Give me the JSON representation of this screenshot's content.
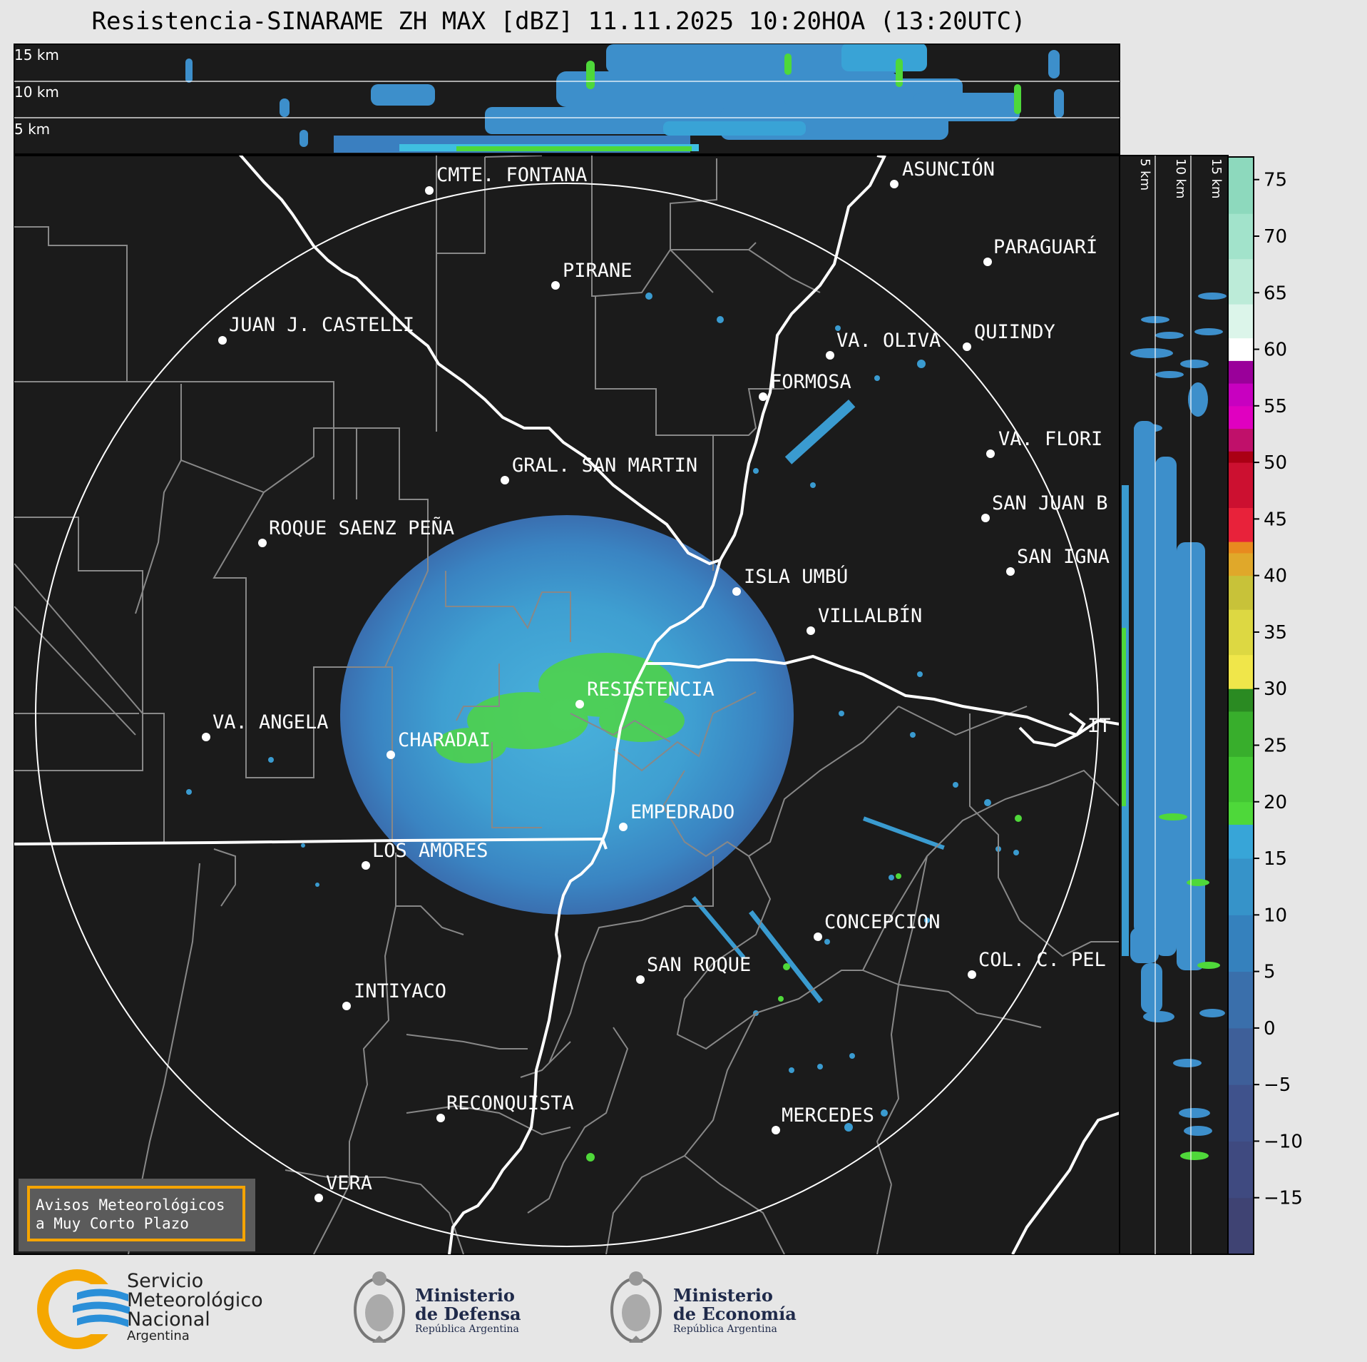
{
  "title": "Resistencia-SINARAME ZH MAX [dBZ] 11.11.2025 10:20HOA (13:20UTC)",
  "top_panel": {
    "heights": [
      "15 km",
      "10 km",
      "5 km"
    ]
  },
  "side_panel": {
    "heights": [
      "5 km",
      "10 km",
      "15 km"
    ]
  },
  "colorbar": {
    "ticks": [
      "75",
      "70",
      "65",
      "60",
      "55",
      "50",
      "45",
      "40",
      "35",
      "30",
      "25",
      "20",
      "15",
      "10",
      "5",
      "0",
      "−5",
      "−10",
      "−15"
    ],
    "values": [
      75,
      70,
      65,
      60,
      55,
      50,
      45,
      40,
      35,
      30,
      25,
      20,
      15,
      10,
      5,
      0,
      -5,
      -10,
      -15
    ],
    "min": -20,
    "max": 77
  },
  "cities": [
    {
      "name": "CMTE. FONTANA"
    },
    {
      "name": "ASUNCIÓN"
    },
    {
      "name": "PIRANE"
    },
    {
      "name": "PARAGUARÍ"
    },
    {
      "name": "JUAN J. CASTELLI"
    },
    {
      "name": "VA. OLIVA"
    },
    {
      "name": "QUIINDY"
    },
    {
      "name": "FORMOSA"
    },
    {
      "name": "VA. FLORI"
    },
    {
      "name": "GRAL. SAN MARTIN"
    },
    {
      "name": "SAN JUAN B"
    },
    {
      "name": "ROQUE SAENZ PEÑA"
    },
    {
      "name": "SAN IGNA"
    },
    {
      "name": "ISLA UMBÚ"
    },
    {
      "name": "VILLALBÍN"
    },
    {
      "name": "RESISTENCIA"
    },
    {
      "name": "VA. ANGELA"
    },
    {
      "name": "CHARADAI"
    },
    {
      "name": "IT"
    },
    {
      "name": "EMPEDRADO"
    },
    {
      "name": "LOS AMORES"
    },
    {
      "name": "CONCEPCION"
    },
    {
      "name": "SAN ROQUE"
    },
    {
      "name": "COL. C. PEL"
    },
    {
      "name": "INTIYACO"
    },
    {
      "name": "RECONQUISTA"
    },
    {
      "name": "MERCEDES"
    },
    {
      "name": "VERA"
    }
  ],
  "notice": {
    "line1": "Avisos Meteorológicos",
    "line2": "a Muy Corto Plazo"
  },
  "logos": {
    "smn": {
      "line1": "Servicio",
      "line2": "Meteorológico",
      "line3": "Nacional",
      "line4": "Argentina"
    },
    "defensa": {
      "line1": "Ministerio",
      "line2": "de Defensa",
      "line3": "República Argentina"
    },
    "economia": {
      "line1": "Ministerio",
      "line2": "de Economía",
      "line3": "República Argentina"
    }
  }
}
